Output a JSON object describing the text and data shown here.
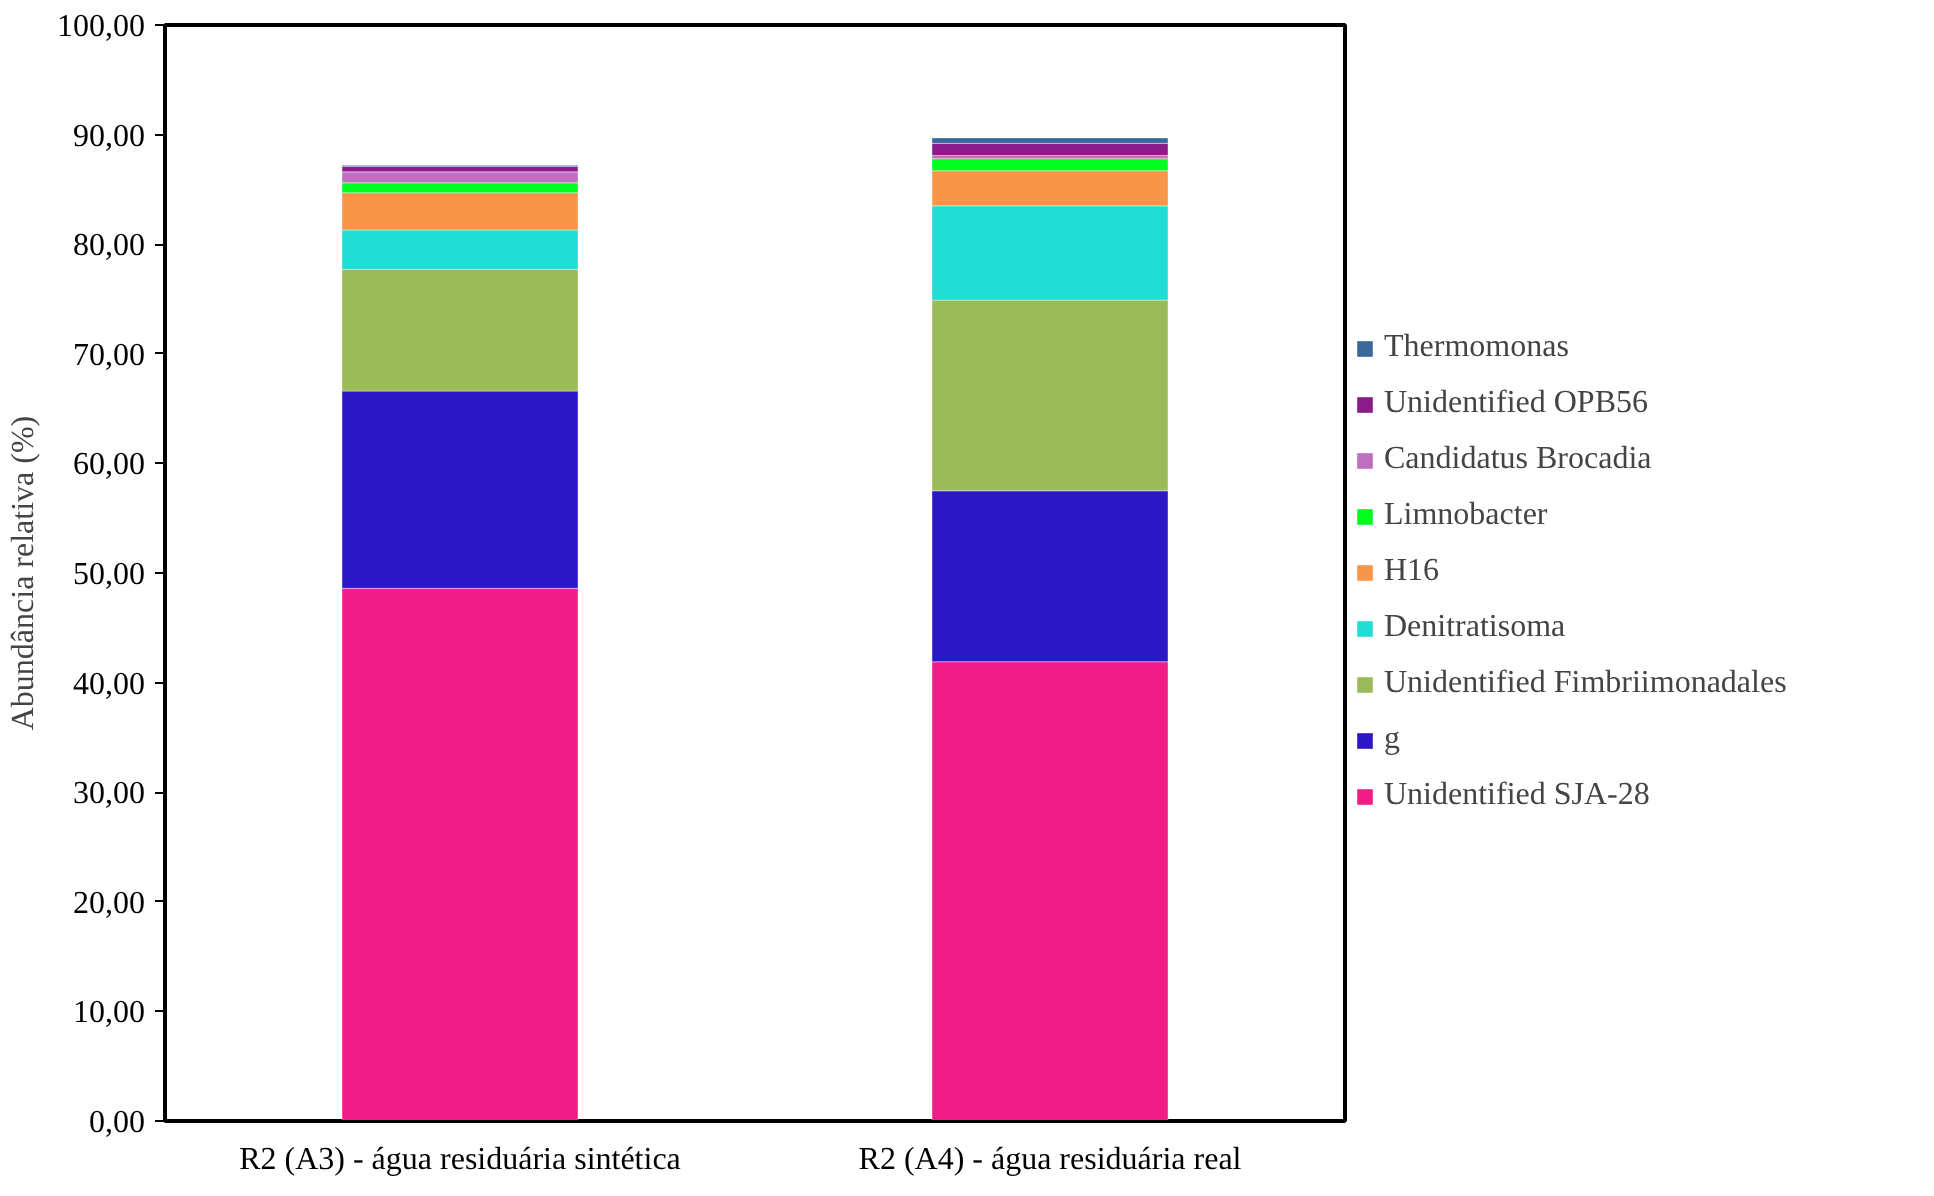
{
  "chart_data": {
    "type": "bar",
    "stacked": true,
    "ylabel": "Abundância relativa (%)",
    "categories": [
      "R2 (A3) - água residuária sintética",
      "R2 (A4) - água residuária real"
    ],
    "ylim": [
      0,
      100
    ],
    "yticks": [
      {
        "value": 0,
        "label": "0,00"
      },
      {
        "value": 10,
        "label": "10,00"
      },
      {
        "value": 20,
        "label": "20,00"
      },
      {
        "value": 30,
        "label": "30,00"
      },
      {
        "value": 40,
        "label": "40,00"
      },
      {
        "value": 50,
        "label": "50,00"
      },
      {
        "value": 60,
        "label": "60,00"
      },
      {
        "value": 70,
        "label": "70,00"
      },
      {
        "value": 80,
        "label": "80,00"
      },
      {
        "value": 90,
        "label": "90,00"
      },
      {
        "value": 100,
        "label": "100,00"
      }
    ],
    "grid": false,
    "legend": "right",
    "series": [
      {
        "name": "Unidentified SJA-28",
        "color": "#f01d86",
        "values": [
          48.6,
          41.9
        ]
      },
      {
        "name": "g",
        "color": "#2c17c7",
        "values": [
          18.0,
          15.6
        ]
      },
      {
        "name": "Unidentified Fimbriimonadales",
        "color": "#9bbb59",
        "values": [
          11.1,
          17.4
        ]
      },
      {
        "name": "Denitratisoma",
        "color": "#22ddd6",
        "values": [
          3.6,
          8.6
        ]
      },
      {
        "name": "H16",
        "color": "#f79646",
        "values": [
          3.4,
          3.2
        ]
      },
      {
        "name": "Limnobacter",
        "color": "#00ff21",
        "values": [
          0.9,
          1.1
        ]
      },
      {
        "name": "Candidatus Brocadia",
        "color": "#c06fc0",
        "values": [
          1.0,
          0.3
        ]
      },
      {
        "name": "Unidentified OPB56",
        "color": "#8b1a8b",
        "values": [
          0.5,
          1.1
        ]
      },
      {
        "name": "Thermomonas",
        "color": "#3a6a9b",
        "values": [
          0.1,
          0.5
        ]
      }
    ]
  }
}
